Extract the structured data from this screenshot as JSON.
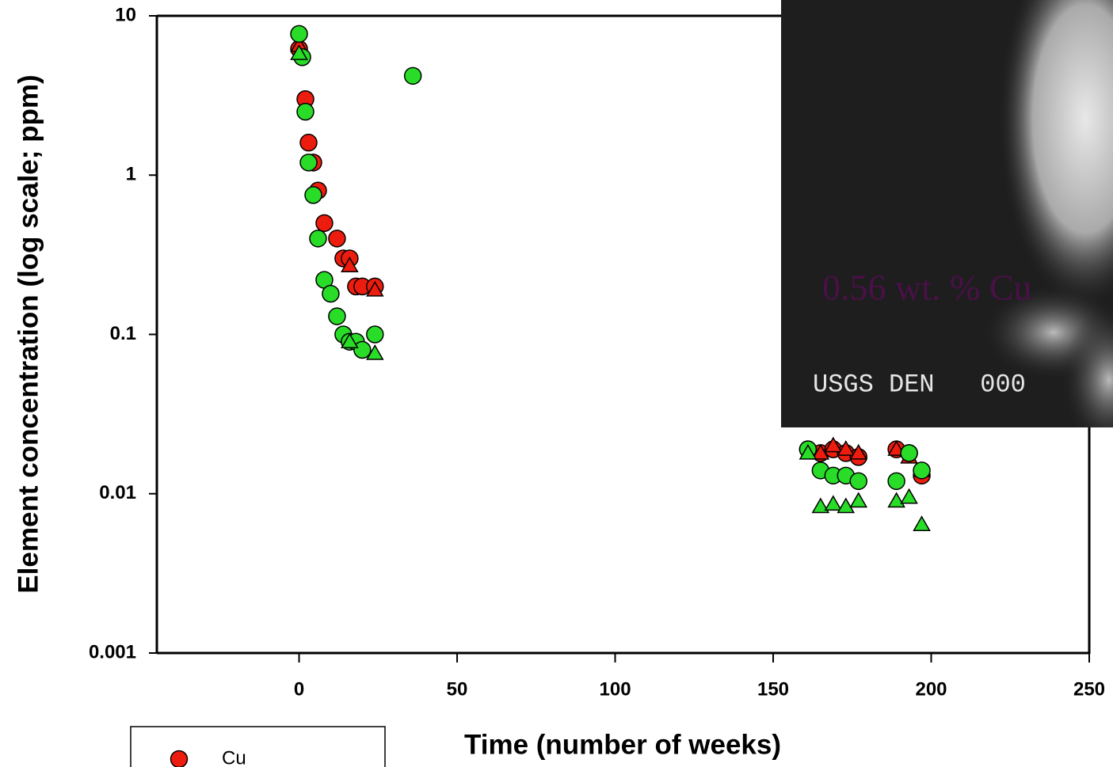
{
  "chart_data": {
    "type": "scatter",
    "xlabel": "Time (number of weeks)",
    "ylabel": "Element concentration (log scale; ppm)",
    "xlim": [
      -45,
      250
    ],
    "xticks": [
      0,
      50,
      100,
      150,
      200,
      250
    ],
    "ylim": [
      0.001,
      10
    ],
    "yticks": [
      0.001,
      0.01,
      0.1,
      1,
      10
    ],
    "yscale": "log",
    "legend": "lower left",
    "series": [
      {
        "name": "Cu",
        "color": "#ec1c0e",
        "marker": "circle",
        "x": [
          0,
          2,
          3,
          4.5,
          6,
          8,
          12,
          14,
          16,
          18,
          20,
          24,
          161,
          165,
          169,
          173,
          177,
          189,
          193,
          197
        ],
        "values": [
          6.2,
          3.0,
          1.6,
          1.2,
          0.8,
          0.5,
          0.4,
          0.3,
          0.3,
          0.2,
          0.2,
          0.2,
          0.019,
          0.018,
          0.019,
          0.018,
          0.017,
          0.019,
          0.018,
          0.013
        ]
      },
      {
        "color": "#ec1c0e",
        "marker": "triangle",
        "x": [
          0,
          16,
          24,
          165,
          169,
          173,
          177,
          189,
          193,
          197
        ],
        "values": [
          6.5,
          0.27,
          0.19,
          0.018,
          0.02,
          0.019,
          0.018,
          0.019,
          0.017,
          0.014
        ]
      },
      {
        "color": "#28dc28",
        "marker": "circle",
        "x": [
          0,
          1,
          2,
          3,
          4.5,
          6,
          8,
          10,
          12,
          14,
          16,
          18,
          20,
          24,
          36,
          161,
          165,
          169,
          173,
          177,
          189,
          193,
          197
        ],
        "values": [
          7.7,
          5.5,
          2.5,
          1.2,
          0.75,
          0.4,
          0.22,
          0.18,
          0.13,
          0.1,
          0.09,
          0.09,
          0.08,
          0.1,
          4.2,
          0.019,
          0.014,
          0.013,
          0.013,
          0.012,
          0.012,
          0.018,
          0.014
        ]
      },
      {
        "color": "#28dc28",
        "marker": "triangle",
        "x": [
          0,
          16,
          24,
          161,
          165,
          169,
          173,
          177,
          189,
          193,
          197
        ],
        "values": [
          5.8,
          0.09,
          0.076,
          0.018,
          0.0083,
          0.0086,
          0.0083,
          0.009,
          0.009,
          0.0095,
          0.0064
        ]
      }
    ]
  },
  "inset": {
    "caption": "0.56 wt. % Cu",
    "stamp": "USGS DEN   000"
  }
}
